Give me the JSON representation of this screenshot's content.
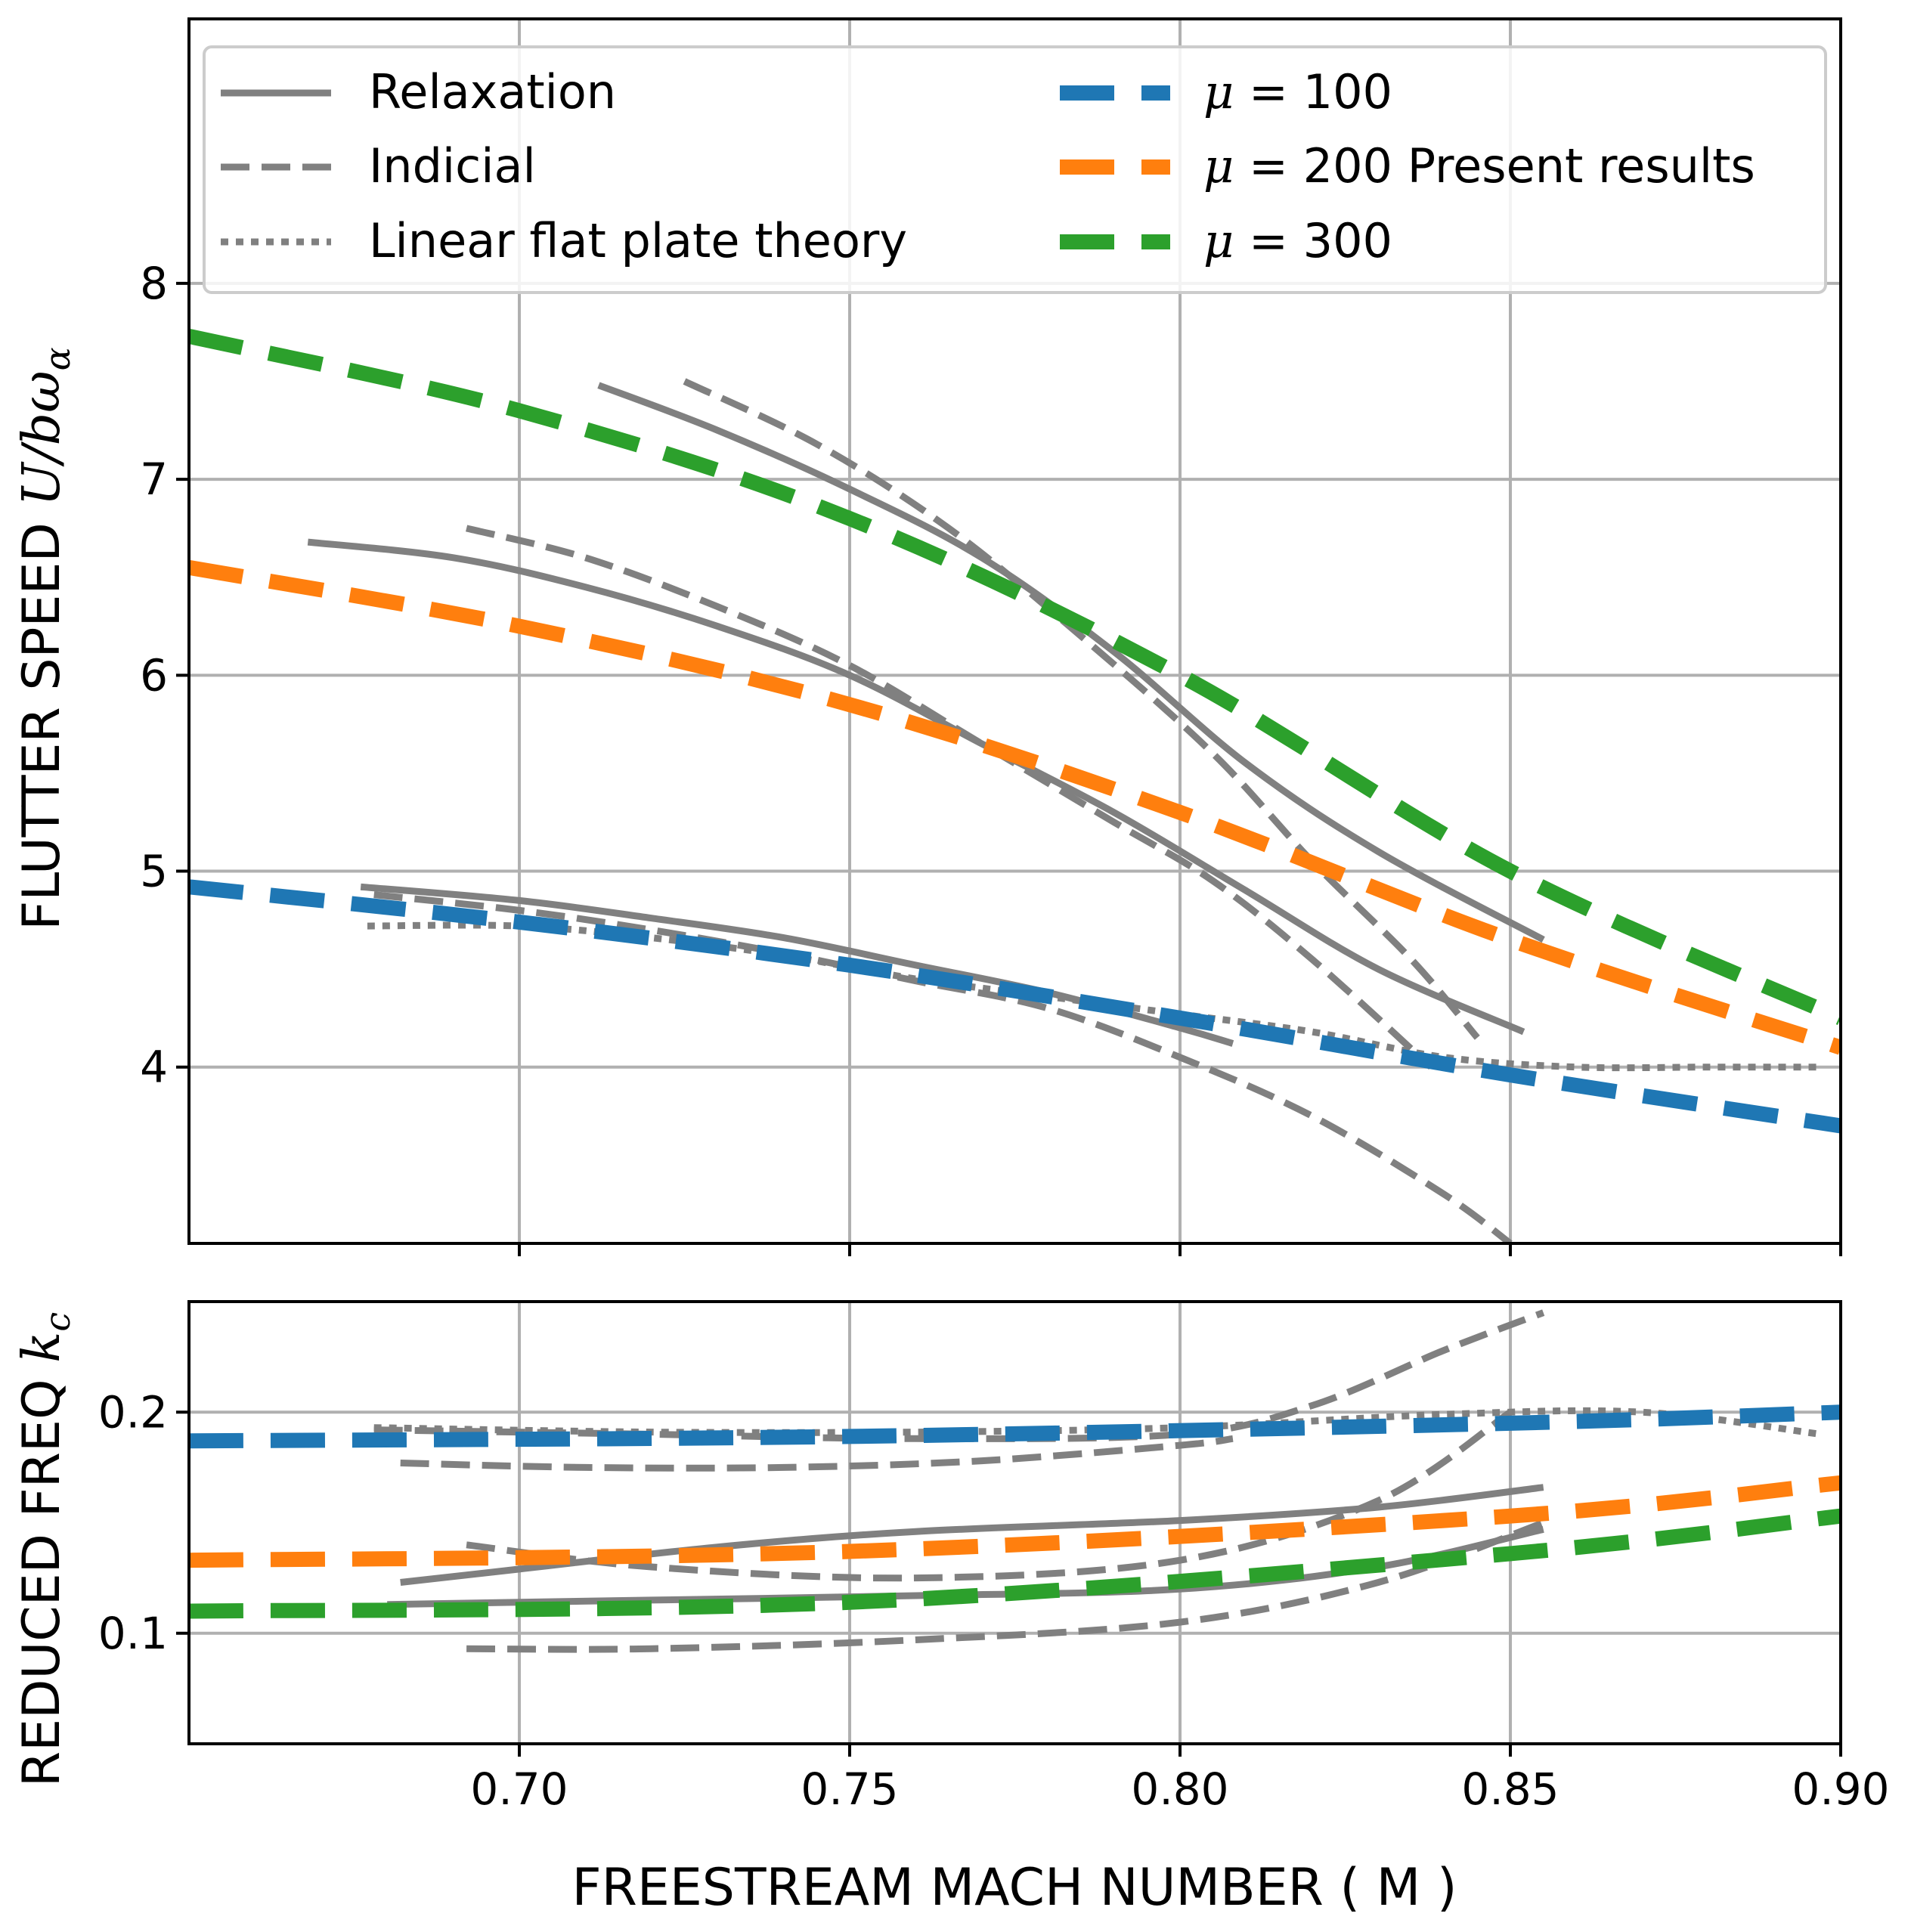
{
  "chart_data": {
    "type": "line",
    "xlabel": "FREESTREAM MACH NUMBER ( M )",
    "xlim": [
      0.65,
      0.9
    ],
    "x_ticks": [
      0.7,
      0.75,
      0.8,
      0.85,
      0.9
    ],
    "x_tick_labels": [
      "0.70",
      "0.75",
      "0.80",
      "0.85",
      "0.90"
    ],
    "grid": true,
    "colors": {
      "gray": "#808080",
      "mu100": "#1f77b4",
      "mu200": "#ff7f0e",
      "mu300": "#2ca02c"
    },
    "legend": {
      "placement": "top",
      "entries": [
        {
          "label": "Relaxation",
          "style": "solid",
          "color": "#808080"
        },
        {
          "label": "Indicial",
          "style": "dashed",
          "color": "#808080"
        },
        {
          "label": "Linear flat plate theory",
          "style": "dotted",
          "color": "#808080"
        },
        {
          "label_math": "μ",
          "label_rest": " = 100",
          "label_suffix": "",
          "style": "dashed-thick",
          "color": "#1f77b4"
        },
        {
          "label_math": "μ",
          "label_rest": " = 200",
          "label_suffix": " Present results",
          "style": "dashed-thick",
          "color": "#ff7f0e"
        },
        {
          "label_math": "μ",
          "label_rest": " = 300",
          "label_suffix": "",
          "style": "dashed-thick",
          "color": "#2ca02c"
        }
      ]
    },
    "panels": [
      {
        "id": "flutter-speed",
        "ylabel_text": "FLUTTER SPEED ",
        "ylabel_math": "U/bω",
        "ylabel_sub": "α",
        "ylim": [
          3.1,
          9.35
        ],
        "y_ticks": [
          4,
          5,
          6,
          7,
          8
        ],
        "y_tick_labels": [
          "4",
          "5",
          "6",
          "7",
          "8"
        ],
        "series": [
          {
            "name": "Relaxation",
            "color": "#808080",
            "style": "solid",
            "x": [
              0.712,
              0.73,
              0.75,
              0.77,
              0.79,
              0.81,
              0.83,
              0.855
            ],
            "y": [
              7.48,
              7.25,
              6.95,
              6.6,
              6.12,
              5.55,
              5.1,
              4.65
            ]
          },
          {
            "name": "Indicial",
            "color": "#808080",
            "style": "dashed",
            "x": [
              0.725,
              0.745,
              0.765,
              0.785,
              0.805,
              0.82,
              0.835,
              0.845
            ],
            "y": [
              7.5,
              7.18,
              6.75,
              6.2,
              5.6,
              5.05,
              4.55,
              4.15
            ]
          },
          {
            "name": "Relaxation",
            "color": "#808080",
            "style": "solid",
            "x": [
              0.668,
              0.69,
              0.71,
              0.73,
              0.75,
              0.77,
              0.79,
              0.81,
              0.83,
              0.852
            ],
            "y": [
              6.68,
              6.6,
              6.45,
              6.25,
              6.0,
              5.65,
              5.3,
              4.9,
              4.5,
              4.18
            ]
          },
          {
            "name": "Indicial",
            "color": "#808080",
            "style": "dashed",
            "x": [
              0.692,
              0.71,
              0.73,
              0.75,
              0.77,
              0.79,
              0.805,
              0.82,
              0.838
            ],
            "y": [
              6.75,
              6.6,
              6.35,
              6.05,
              5.65,
              5.25,
              4.95,
              4.55,
              4.0
            ]
          },
          {
            "name": "Relaxation",
            "color": "#808080",
            "style": "solid",
            "x": [
              0.676,
              0.7,
              0.72,
              0.74,
              0.76,
              0.78,
              0.8,
              0.808
            ],
            "y": [
              4.92,
              4.85,
              4.76,
              4.66,
              4.52,
              4.38,
              4.2,
              4.12
            ]
          },
          {
            "name": "Indicial",
            "color": "#808080",
            "style": "dashed",
            "x": [
              0.678,
              0.7,
              0.72,
              0.74,
              0.76,
              0.78,
              0.8,
              0.82,
              0.84,
              0.85
            ],
            "y": [
              4.88,
              4.8,
              4.7,
              4.58,
              4.44,
              4.3,
              4.05,
              3.75,
              3.35,
              3.1
            ]
          },
          {
            "name": "Linear flat plate theory",
            "color": "#808080",
            "style": "dotted",
            "x": [
              0.677,
              0.7,
              0.72,
              0.74,
              0.76,
              0.78,
              0.8,
              0.82,
              0.84,
              0.86,
              0.88,
              0.897
            ],
            "y": [
              4.72,
              4.72,
              4.66,
              4.57,
              4.45,
              4.36,
              4.27,
              4.18,
              4.05,
              4.0,
              4.0,
              4.0
            ]
          },
          {
            "name": "μ = 100",
            "color": "#1f77b4",
            "style": "dashed-thick",
            "x": [
              0.65,
              0.7,
              0.75,
              0.8,
              0.85,
              0.9
            ],
            "y": [
              4.92,
              4.74,
              4.52,
              4.25,
              3.96,
              3.7
            ]
          },
          {
            "name": "μ = 200",
            "color": "#ff7f0e",
            "style": "dashed-thick",
            "x": [
              0.65,
              0.7,
              0.75,
              0.8,
              0.85,
              0.9
            ],
            "y": [
              6.55,
              6.25,
              5.85,
              5.3,
              4.65,
              4.1
            ]
          },
          {
            "name": "μ = 300",
            "color": "#2ca02c",
            "style": "dashed-thick",
            "x": [
              0.65,
              0.7,
              0.75,
              0.8,
              0.85,
              0.9
            ],
            "y": [
              7.73,
              7.35,
              6.8,
              6.0,
              5.0,
              4.25
            ]
          }
        ]
      },
      {
        "id": "reduced-freq",
        "ylabel_text": "REDUCED FREQ ",
        "ylabel_math": "k",
        "ylabel_sub": "c",
        "ylim": [
          0.05,
          0.25
        ],
        "y_ticks": [
          0.1,
          0.2
        ],
        "y_tick_labels": [
          "0.1",
          "0.2"
        ],
        "series": [
          {
            "name": "Indicial",
            "color": "#808080",
            "style": "dashed",
            "x": [
              0.678,
              0.72,
              0.76,
              0.8,
              0.82,
              0.84,
              0.855
            ],
            "y": [
              0.192,
              0.19,
              0.188,
              0.19,
              0.203,
              0.228,
              0.245
            ]
          },
          {
            "name": "Linear flat plate theory",
            "color": "#808080",
            "style": "dotted",
            "x": [
              0.678,
              0.72,
              0.76,
              0.8,
              0.84,
              0.87,
              0.897
            ],
            "y": [
              0.193,
              0.191,
              0.191,
              0.193,
              0.199,
              0.2,
              0.19
            ]
          },
          {
            "name": "Indicial",
            "color": "#808080",
            "style": "dashed",
            "x": [
              0.682,
              0.71,
              0.74,
              0.77,
              0.8,
              0.808
            ],
            "y": [
              0.177,
              0.175,
              0.175,
              0.178,
              0.185,
              0.188
            ]
          },
          {
            "name": "Relaxation",
            "color": "#808080",
            "style": "solid",
            "x": [
              0.682,
              0.7,
              0.73,
              0.76,
              0.8,
              0.83,
              0.855
            ],
            "y": [
              0.123,
              0.129,
              0.139,
              0.146,
              0.151,
              0.157,
              0.166
            ]
          },
          {
            "name": "Indicial",
            "color": "#808080",
            "style": "dashed",
            "x": [
              0.692,
              0.72,
              0.76,
              0.8,
              0.83,
              0.85
            ],
            "y": [
              0.14,
              0.13,
              0.125,
              0.133,
              0.16,
              0.2
            ]
          },
          {
            "name": "Relaxation",
            "color": "#808080",
            "style": "solid",
            "x": [
              0.68,
              0.72,
              0.76,
              0.8,
              0.83,
              0.855
            ],
            "y": [
              0.113,
              0.115,
              0.117,
              0.12,
              0.13,
              0.147
            ]
          },
          {
            "name": "Indicial",
            "color": "#808080",
            "style": "dashed",
            "x": [
              0.692,
              0.72,
              0.76,
              0.8,
              0.83,
              0.855
            ],
            "y": [
              0.093,
              0.093,
              0.097,
              0.105,
              0.123,
              0.15
            ]
          },
          {
            "name": "μ = 100",
            "color": "#1f77b4",
            "style": "dashed-thick",
            "x": [
              0.65,
              0.75,
              0.85,
              0.9
            ],
            "y": [
              0.187,
              0.189,
              0.195,
              0.2
            ]
          },
          {
            "name": "μ = 200",
            "color": "#ff7f0e",
            "style": "dashed-thick",
            "x": [
              0.65,
              0.75,
              0.85,
              0.9
            ],
            "y": [
              0.133,
              0.137,
              0.153,
              0.168
            ]
          },
          {
            "name": "μ = 300",
            "color": "#2ca02c",
            "style": "dashed-thick",
            "x": [
              0.65,
              0.75,
              0.85,
              0.9
            ],
            "y": [
              0.11,
              0.114,
              0.136,
              0.153
            ]
          }
        ]
      }
    ]
  }
}
